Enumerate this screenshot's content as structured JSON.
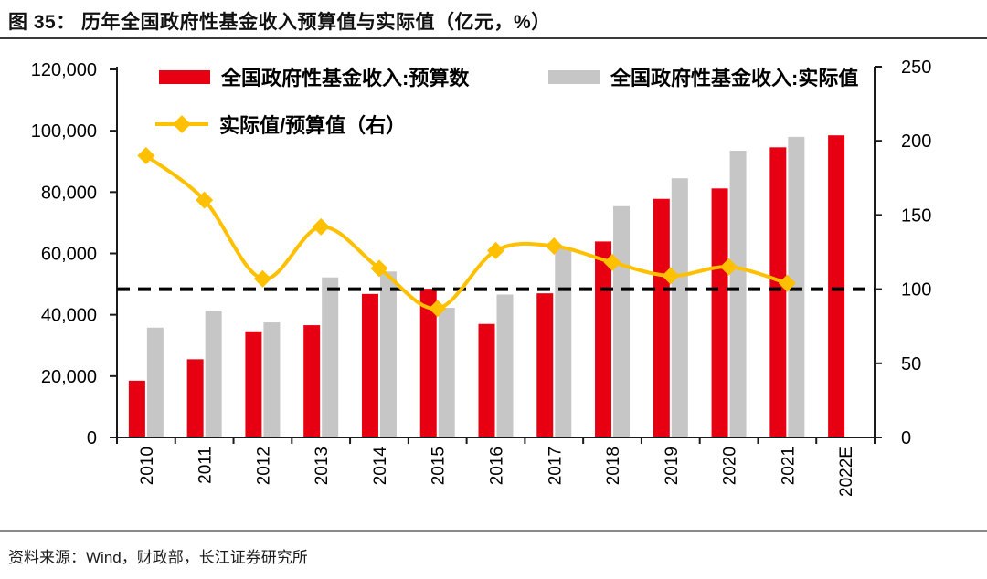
{
  "figure": {
    "title": "图 35： 历年全国政府性基金收入预算值与实际值（亿元，%）",
    "source": "资料来源：Wind，财政部，长江证券研究所"
  },
  "legend": [
    {
      "label": "全国政府性基金收入:预算数",
      "type": "bar",
      "color": "#E60012"
    },
    {
      "label": "全国政府性基金收入:实际值",
      "type": "bar",
      "color": "#C6C6C6"
    },
    {
      "label": "实际值/预算值（右）",
      "type": "line",
      "color": "#FFC000"
    }
  ],
  "chart_data": {
    "type": "bar",
    "subtype": "combo-bar-line",
    "categories": [
      "2010",
      "2011",
      "2012",
      "2013",
      "2014",
      "2015",
      "2016",
      "2017",
      "2018",
      "2019",
      "2020",
      "2021",
      "2022E"
    ],
    "series": [
      {
        "name": "全国政府性基金收入:预算数",
        "type": "bar",
        "axis": "left",
        "color": "#E60012",
        "values": [
          18500,
          25500,
          34600,
          36600,
          46800,
          48500,
          37000,
          47000,
          63900,
          77800,
          81200,
          94600,
          98500
        ]
      },
      {
        "name": "全国政府性基金收入:实际值",
        "type": "bar",
        "axis": "left",
        "color": "#C6C6C6",
        "values": [
          35800,
          41400,
          37500,
          52200,
          54100,
          42300,
          46600,
          61500,
          75400,
          84500,
          93500,
          98000,
          null
        ]
      },
      {
        "name": "实际值/预算值（右）",
        "type": "line",
        "axis": "right",
        "color": "#FFC000",
        "values": [
          190,
          160,
          107,
          142,
          114,
          87,
          126,
          129,
          118,
          109,
          115,
          104,
          null
        ]
      }
    ],
    "left_axis": {
      "min": 0,
      "max": 120000,
      "step": 20000,
      "tick_labels": [
        "0",
        "20,000",
        "40,000",
        "60,000",
        "80,000",
        "100,000",
        "120,000"
      ]
    },
    "right_axis": {
      "min": 0,
      "max": 250,
      "step": 50,
      "tick_labels": [
        "0",
        "50",
        "100",
        "150",
        "200",
        "250"
      ]
    },
    "reference_line": {
      "value": 100,
      "axis": "right",
      "style": "dashed",
      "color": "#000000"
    },
    "grid": "off",
    "legend_position": "top-inside"
  }
}
